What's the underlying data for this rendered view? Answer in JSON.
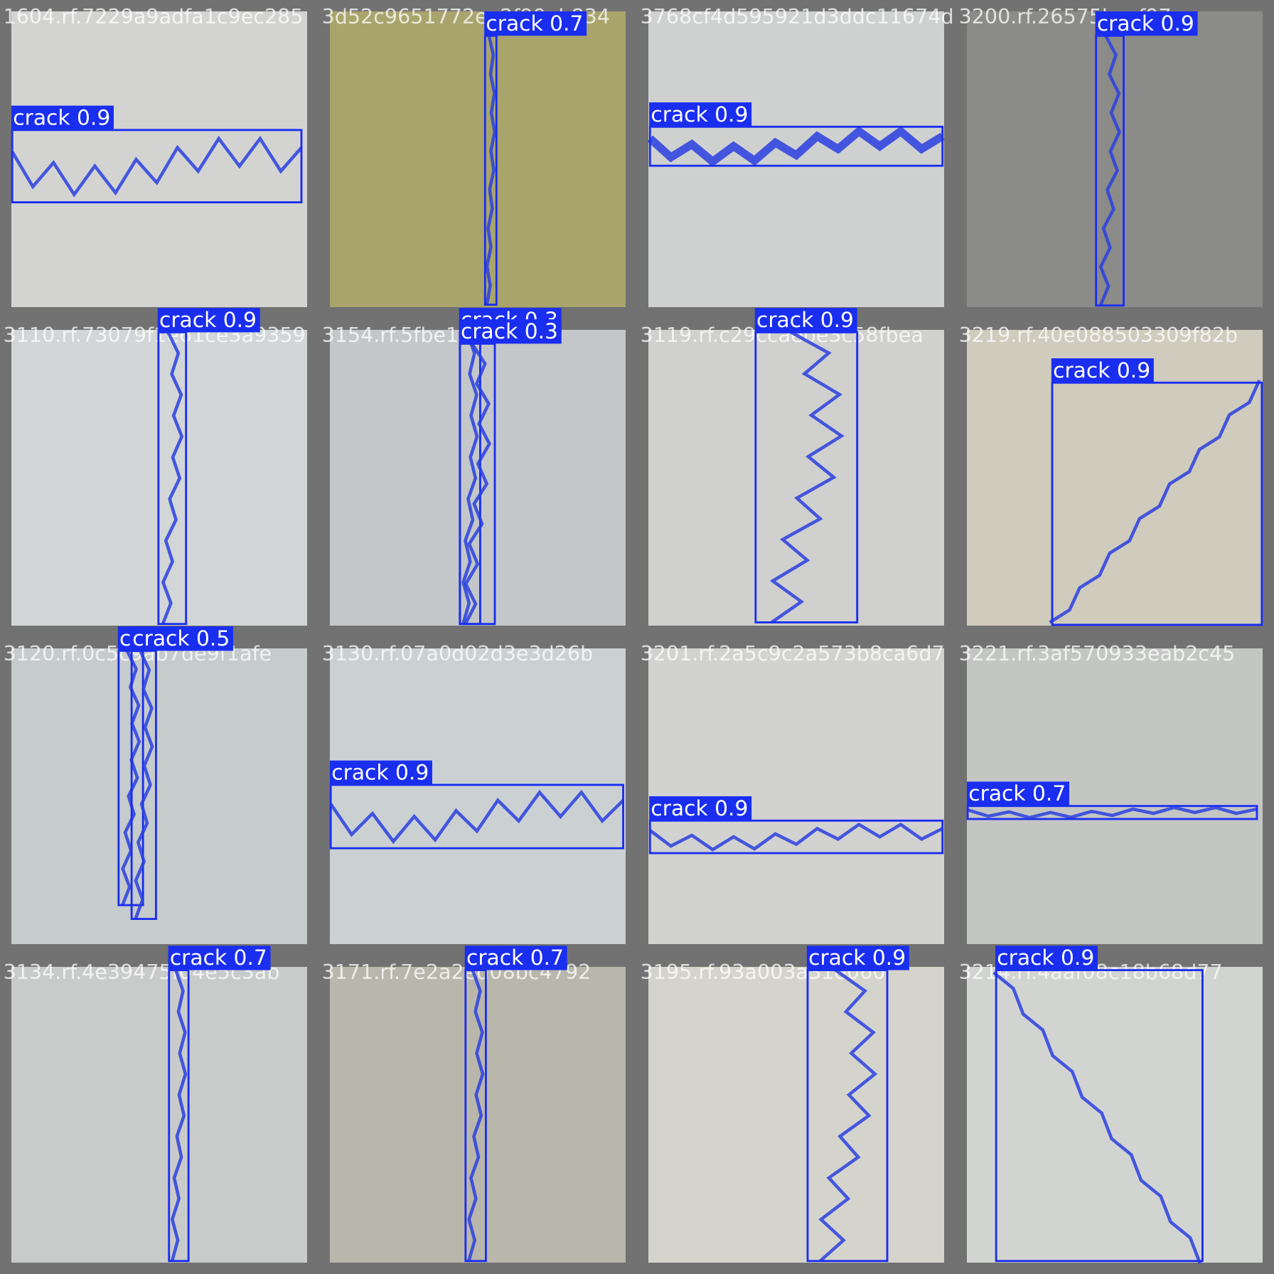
{
  "tiles": [
    {
      "filename": "1604.rf.7229a9adfa1c9ec285",
      "detections": [
        {
          "label": "crack 0.9"
        }
      ]
    },
    {
      "filename": "3d52c9651772ea2f90eb834",
      "detections": [
        {
          "label": "crack 0.7"
        }
      ]
    },
    {
      "filename": "3768cf4d595921d3ddc11674d",
      "detections": [
        {
          "label": "crack 0.9"
        }
      ]
    },
    {
      "filename": "3200.rf.26575bcaf97ac",
      "detections": [
        {
          "label": "crack 0.9"
        }
      ]
    },
    {
      "filename": "3110.rf.73079f1e61ce3a9359",
      "detections": [
        {
          "label": "crack 0.9"
        }
      ]
    },
    {
      "filename": "3154.rf.5fbe1bcbb37c",
      "detections": [
        {
          "label": "crack 0.3"
        },
        {
          "label": "crack 0.3"
        }
      ]
    },
    {
      "filename": "3119.rf.c29ccaebe3c58fbea",
      "detections": [
        {
          "label": "crack 0.9"
        }
      ]
    },
    {
      "filename": "3219.rf.40e088503309f82b",
      "detections": [
        {
          "label": "crack 0.9"
        }
      ]
    },
    {
      "filename": "3120.rf.0c5c9ab7de9f1afe",
      "detections": [
        {
          "label": "crack 0.5"
        },
        {
          "label": "crack 0.5"
        }
      ]
    },
    {
      "filename": "3130.rf.07a0d02d3e3d26b",
      "detections": [
        {
          "label": "crack 0.9"
        }
      ]
    },
    {
      "filename": "3201.rf.2a5c9c2a573b8ca6d7",
      "detections": [
        {
          "label": "crack 0.9"
        }
      ]
    },
    {
      "filename": "3221.rf.3af570933eab2c45",
      "detections": [
        {
          "label": "crack 0.7"
        }
      ]
    },
    {
      "filename": "3134.rf.4e39475f04e5c3ab",
      "detections": [
        {
          "label": "crack 0.7"
        }
      ]
    },
    {
      "filename": "3171.rf.7e2a2ed08bc4792",
      "detections": [
        {
          "label": "crack 0.7"
        }
      ]
    },
    {
      "filename": "3195.rf.93a003a31e060",
      "detections": [
        {
          "label": "crack 0.9"
        }
      ]
    },
    {
      "filename": "3214.rf.4aaf08c18b68d77",
      "detections": [
        {
          "label": "crack 0.9"
        }
      ]
    }
  ]
}
